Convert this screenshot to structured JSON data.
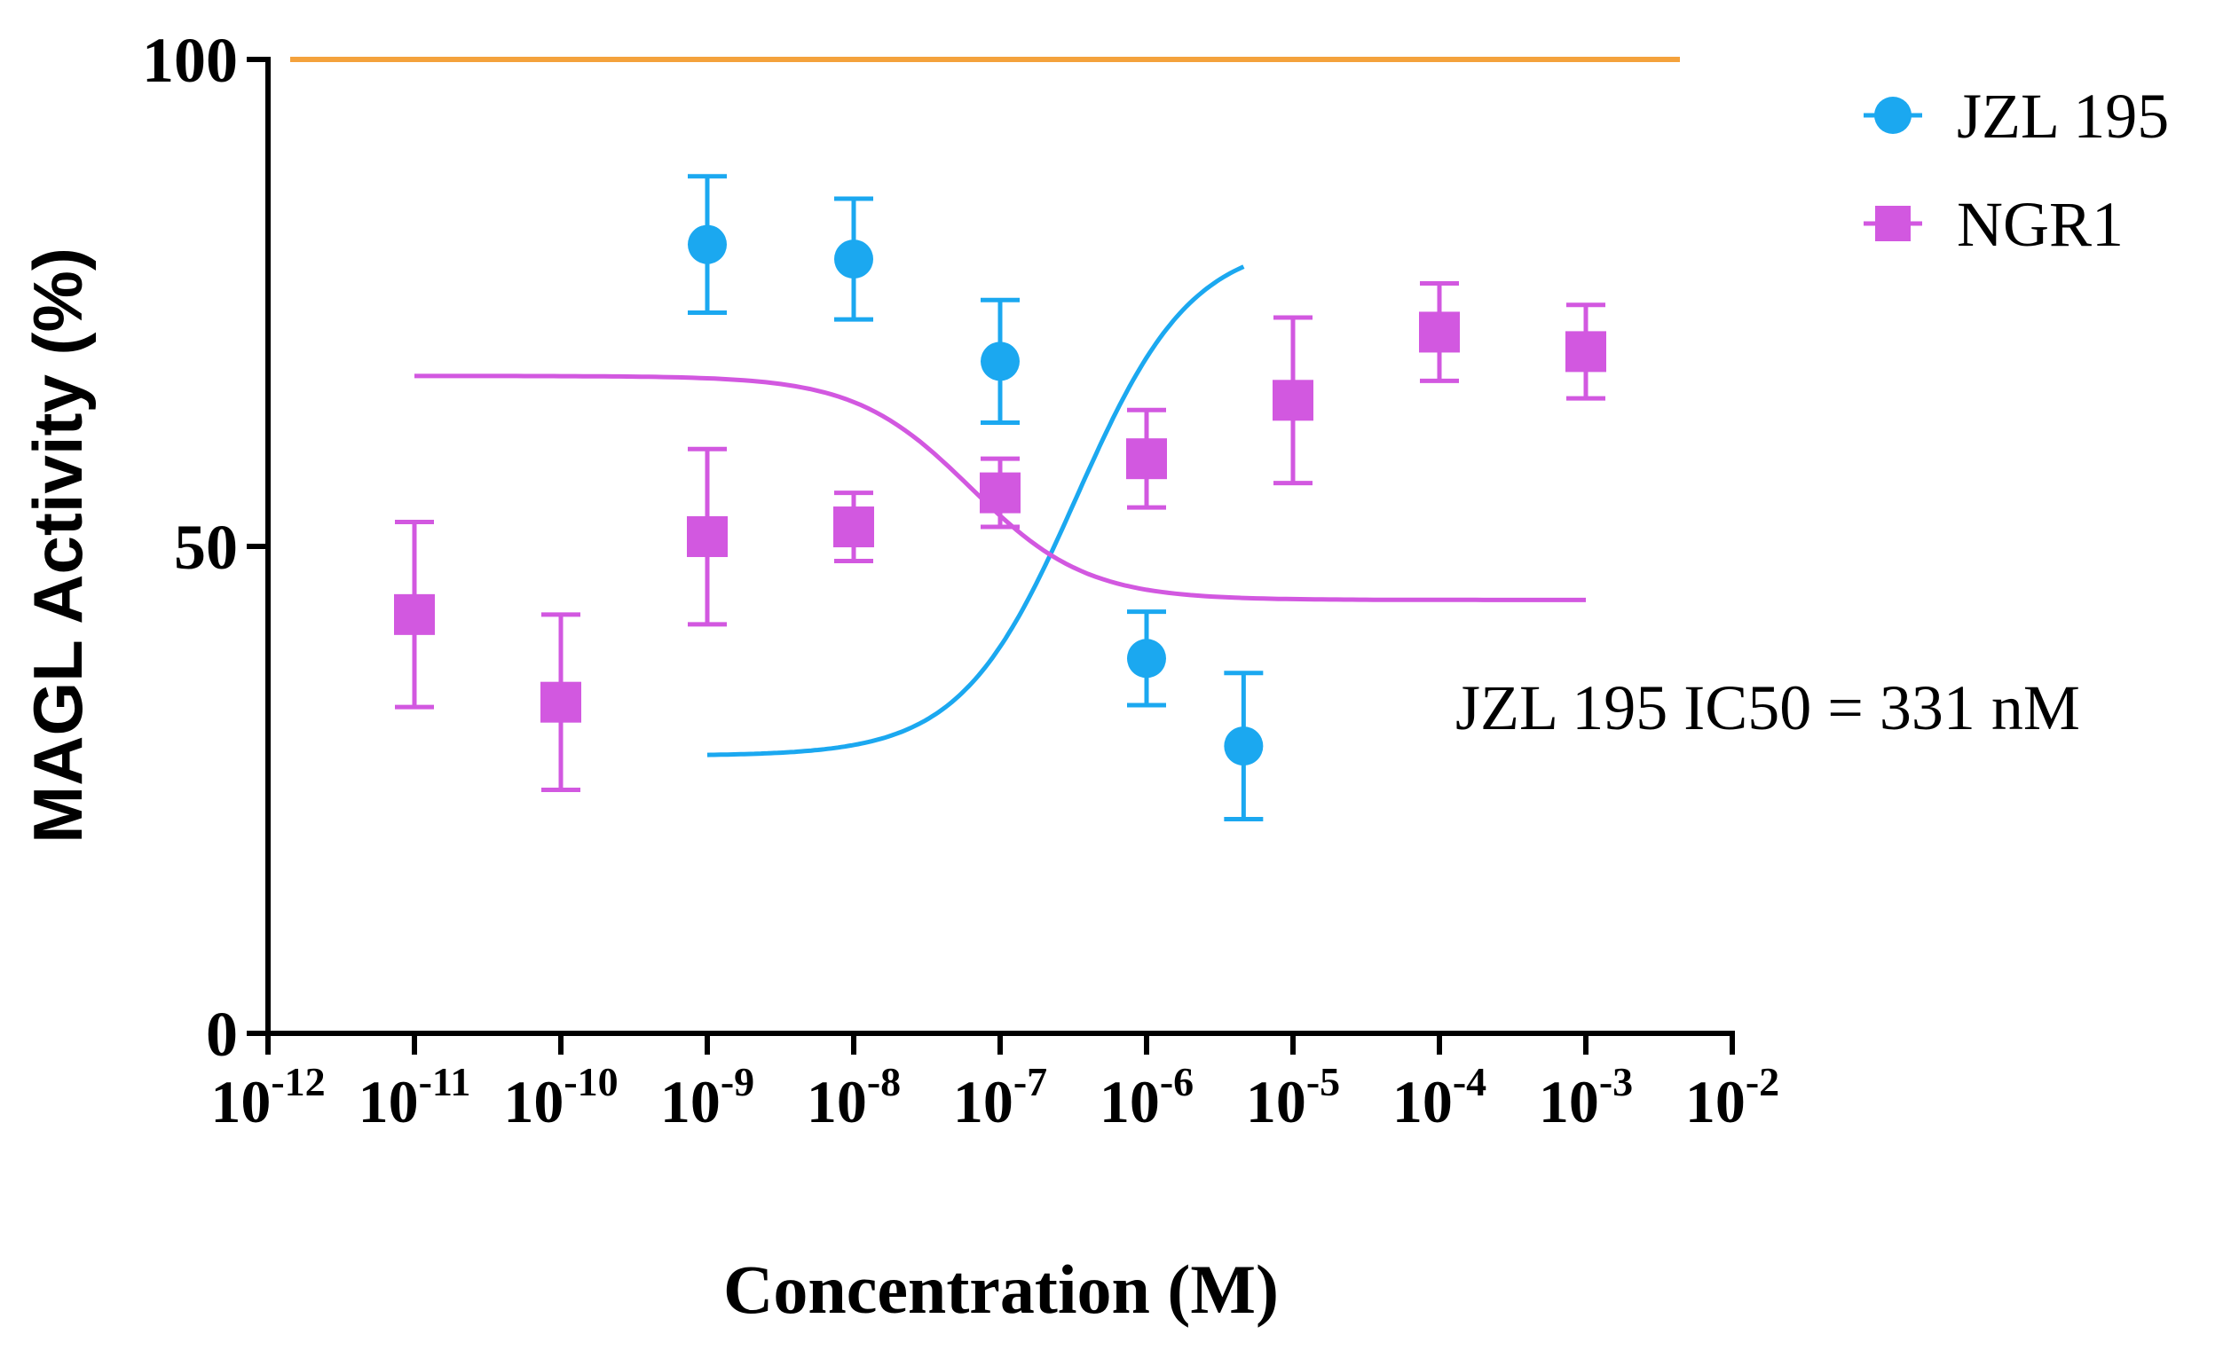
{
  "chart_data": {
    "type": "scatter",
    "xlabel": "Concentration (M)",
    "ylabel": "MAGL Activity (%)",
    "xscale": "log",
    "xlim": [
      1e-12,
      0.01
    ],
    "ylim": [
      0,
      100
    ],
    "xticks": [
      {
        "base": "10",
        "exp": "-12"
      },
      {
        "base": "10",
        "exp": "-11"
      },
      {
        "base": "10",
        "exp": "-10"
      },
      {
        "base": "10",
        "exp": "-9"
      },
      {
        "base": "10",
        "exp": "-8"
      },
      {
        "base": "10",
        "exp": "-7"
      },
      {
        "base": "10",
        "exp": "-6"
      },
      {
        "base": "10",
        "exp": "-5"
      },
      {
        "base": "10",
        "exp": "-4"
      },
      {
        "base": "10",
        "exp": "-3"
      },
      {
        "base": "10",
        "exp": "-2"
      }
    ],
    "yticks": [
      "0",
      "50",
      "100"
    ],
    "reference_line": {
      "y": 100,
      "color": "#f4a23c"
    },
    "series": [
      {
        "name": "JZL 195",
        "marker": "circle",
        "color": "#1ba8f0",
        "x": [
          1e-09,
          1e-08,
          1e-07,
          1e-06,
          4.6e-06
        ],
        "y": [
          81,
          79.5,
          69,
          38.5,
          29.5
        ],
        "error": [
          7,
          6.2,
          6.3,
          4.8,
          7.5
        ],
        "fit": {
          "model": "sigmoid",
          "top": 81.5,
          "bottom": 28.5,
          "logEC50": -6.48,
          "hill": -1.1
        }
      },
      {
        "name": "NGR1",
        "marker": "square",
        "color": "#d258e0",
        "x": [
          1e-11,
          1e-10,
          1e-09,
          1e-08,
          1e-07,
          1e-06,
          1e-05,
          0.0001,
          0.001
        ],
        "y": [
          43,
          34,
          51,
          52,
          55.5,
          59,
          65,
          72,
          70
        ],
        "error": [
          9.5,
          9,
          9,
          3.5,
          3.5,
          5,
          8.5,
          5,
          4.8
        ],
        "fit": {
          "model": "sigmoid",
          "top": 67.5,
          "bottom": 44.5,
          "logEC50": -7.2,
          "hill": 1.1
        }
      }
    ],
    "legend": {
      "position": "top-right"
    },
    "annotation": "JZL 195 IC50 = 331 nM"
  }
}
